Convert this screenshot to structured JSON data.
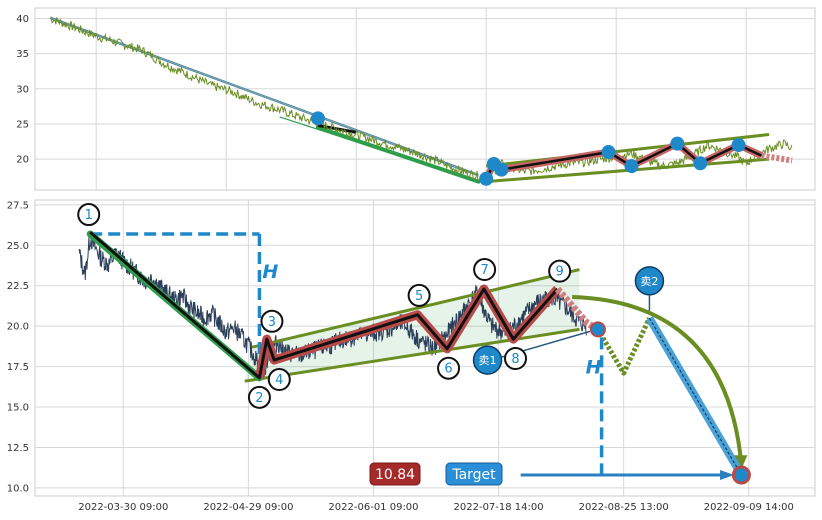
{
  "chart_data": [
    {
      "type": "line",
      "title": "",
      "ylim": [
        15.6,
        41.5
      ],
      "yticks": [
        20,
        25,
        30,
        35,
        40
      ],
      "grid": true,
      "price_anchors": [
        [
          0,
          40
        ],
        [
          3,
          38.8
        ],
        [
          6,
          37.5
        ],
        [
          9,
          36.5
        ],
        [
          12,
          35.5
        ],
        [
          15,
          33.5
        ],
        [
          18,
          32
        ],
        [
          21,
          30.5
        ],
        [
          24,
          29.5
        ],
        [
          27,
          28
        ],
        [
          30,
          27
        ],
        [
          33,
          25.8
        ],
        [
          36,
          24.8
        ],
        [
          39,
          23.8
        ],
        [
          42,
          22.8
        ],
        [
          45,
          21.8
        ],
        [
          48,
          20.8
        ],
        [
          50,
          20
        ],
        [
          52,
          19
        ],
        [
          54,
          18.2
        ],
        [
          56,
          17.6
        ],
        [
          57,
          17.2
        ],
        [
          58,
          18.4
        ],
        [
          59,
          19.3
        ],
        [
          60,
          19
        ],
        [
          62,
          18.2
        ],
        [
          64,
          18.5
        ],
        [
          66,
          19
        ],
        [
          68,
          19.4
        ],
        [
          70,
          19.6
        ],
        [
          72,
          20
        ],
        [
          74,
          20.4
        ],
        [
          76,
          20.8
        ],
        [
          78,
          19.8
        ],
        [
          80,
          19
        ],
        [
          82,
          19.4
        ],
        [
          84,
          20.5
        ],
        [
          86,
          22
        ],
        [
          88,
          21.2
        ],
        [
          90,
          20.2
        ],
        [
          91,
          19.3
        ],
        [
          92,
          20.3
        ],
        [
          94,
          21.5
        ],
        [
          96,
          22.2
        ],
        [
          97,
          21.5
        ]
      ],
      "extra_lines": [
        {
          "color": "#2e9e4d",
          "points": [
            [
              30,
              26
            ],
            [
              56,
              16.8
            ]
          ]
        },
        {
          "color": "#5a8fa0",
          "points": [
            [
              0,
              40.2
            ],
            [
              56,
              17.8
            ]
          ]
        },
        {
          "color": "#5a8fa0",
          "points": [
            [
              0,
              40.0
            ],
            [
              56,
              17.6
            ]
          ]
        }
      ],
      "green_segment": [
        [
          35,
          24.5
        ],
        [
          56,
          16.8
        ]
      ],
      "black_segment": [
        [
          35,
          24.8
        ],
        [
          40,
          23.8
        ]
      ],
      "channel_upper": [
        [
          57,
          19
        ],
        [
          94,
          23.5
        ]
      ],
      "channel_lower": [
        [
          57,
          16.8
        ],
        [
          94,
          20
        ]
      ],
      "zigzag": [
        [
          57,
          17.2
        ],
        [
          58,
          19.3
        ],
        [
          59,
          18.5
        ],
        [
          73,
          21
        ],
        [
          76,
          19
        ],
        [
          82,
          22.2
        ],
        [
          85,
          19.4
        ],
        [
          90,
          22
        ],
        [
          93,
          20.5
        ]
      ],
      "zigzag_tail": [
        [
          93,
          20.5
        ],
        [
          97,
          19.8
        ]
      ],
      "markers": [
        [
          35,
          25.8
        ],
        [
          57,
          17.2
        ],
        [
          58,
          19.3
        ],
        [
          59,
          18.5
        ],
        [
          73,
          21
        ],
        [
          76,
          19
        ],
        [
          82,
          22.2
        ],
        [
          85,
          19.4
        ],
        [
          90,
          22
        ]
      ]
    },
    {
      "type": "line",
      "title": "",
      "ylim": [
        9.5,
        27.8
      ],
      "yticks": [
        10.0,
        12.5,
        15.0,
        17.5,
        20.0,
        22.5,
        25.0,
        27.5
      ],
      "x_ticks": [
        {
          "x": 6,
          "label": "2022-03-30 09:00"
        },
        {
          "x": 23,
          "label": "2022-04-29 09:00"
        },
        {
          "x": 40,
          "label": "2022-06-01 09:00"
        },
        {
          "x": 57,
          "label": "2022-07-18 14:00"
        },
        {
          "x": 74,
          "label": "2022-08-25 13:00"
        },
        {
          "x": 91,
          "label": "2022-09-09 14:00"
        }
      ],
      "grid": true,
      "price_anchors": [
        [
          0,
          24.5
        ],
        [
          0.8,
          23.2
        ],
        [
          1.5,
          25.5
        ],
        [
          2,
          25
        ],
        [
          3,
          24.2
        ],
        [
          4,
          23.8
        ],
        [
          5,
          24.5
        ],
        [
          6,
          24
        ],
        [
          7,
          23.6
        ],
        [
          8,
          23.2
        ],
        [
          9,
          22.8
        ],
        [
          10,
          23
        ],
        [
          11,
          22.4
        ],
        [
          12,
          22
        ],
        [
          13,
          21.6
        ],
        [
          14,
          21.9
        ],
        [
          15,
          21.2
        ],
        [
          16,
          20.8
        ],
        [
          17,
          20.5
        ],
        [
          18,
          20.8
        ],
        [
          19,
          20.2
        ],
        [
          20,
          19.6
        ],
        [
          21,
          19.9
        ],
        [
          22,
          19.4
        ],
        [
          23,
          18.8
        ],
        [
          24,
          18
        ],
        [
          25,
          17
        ],
        [
          26,
          18.6
        ],
        [
          27,
          19
        ],
        [
          28,
          18.4
        ],
        [
          30,
          18.2
        ],
        [
          32,
          18.5
        ],
        [
          34,
          18.8
        ],
        [
          36,
          19.2
        ],
        [
          38,
          19.4
        ],
        [
          40,
          19.6
        ],
        [
          42,
          19.8
        ],
        [
          44,
          20.2
        ],
        [
          46,
          19.2
        ],
        [
          48,
          18.6
        ],
        [
          50,
          19.5
        ],
        [
          52,
          20.8
        ],
        [
          54,
          22
        ],
        [
          55,
          21
        ],
        [
          56,
          20
        ],
        [
          58,
          19.5
        ],
        [
          60,
          20.4
        ],
        [
          62,
          21.4
        ],
        [
          64,
          21.8
        ],
        [
          66,
          21.2
        ],
        [
          68,
          20.2
        ],
        [
          69,
          20
        ]
      ],
      "channel_upper": [
        [
          23.5,
          18.7
        ],
        [
          68,
          23.5
        ]
      ],
      "channel_lower": [
        [
          22.5,
          16.6
        ],
        [
          68,
          19.8
        ]
      ],
      "green_segment": [
        [
          1.5,
          25.7
        ],
        [
          24.5,
          16.8
        ]
      ],
      "zigzag": [
        [
          1.5,
          25.8
        ],
        [
          24.5,
          16.8
        ],
        [
          25.5,
          19.2
        ],
        [
          26.5,
          17.9
        ],
        [
          46,
          20.7
        ],
        [
          50,
          18.6
        ],
        [
          55,
          22.3
        ],
        [
          59,
          19.2
        ],
        [
          65,
          22.3
        ]
      ],
      "zigzag_tail": [
        [
          65,
          22.3
        ],
        [
          69,
          20.2
        ],
        [
          70.5,
          19.8
        ]
      ],
      "projection": [
        [
          70.5,
          19.8
        ],
        [
          74,
          17.1
        ],
        [
          77.5,
          20.5
        ]
      ],
      "sell_path": [
        [
          77.5,
          20.5
        ],
        [
          90,
          10.8
        ]
      ],
      "arc_start": [
        67,
        21.8
      ],
      "arc_ctrl": [
        88,
        21.5
      ],
      "arc_end": [
        90,
        11.4
      ],
      "target_circle": [
        90,
        10.8
      ],
      "turn_circle": [
        70.5,
        19.8
      ],
      "h_left": {
        "x": 24.5,
        "y_top": 25.7,
        "y_bottom": 16.8,
        "x_start": 1.5
      },
      "h_right": {
        "x": 71,
        "y_top": 19.8,
        "y_bottom": 10.8
      },
      "target_arrow": {
        "x_start": 60,
        "x_end": 89,
        "y": 10.8
      },
      "labels": [
        {
          "n": "1",
          "x": 1.3,
          "y": 26.9
        },
        {
          "n": "2",
          "x": 24.5,
          "y": 15.6
        },
        {
          "n": "3",
          "x": 26.2,
          "y": 20.3
        },
        {
          "n": "4",
          "x": 27.2,
          "y": 16.7
        },
        {
          "n": "5",
          "x": 46.2,
          "y": 21.9
        },
        {
          "n": "6",
          "x": 50.2,
          "y": 17.4
        },
        {
          "n": "7",
          "x": 55.1,
          "y": 23.5
        },
        {
          "n": "8",
          "x": 59.3,
          "y": 18
        },
        {
          "n": "9",
          "x": 65.3,
          "y": 23.4
        }
      ],
      "sell1": {
        "x": 55.5,
        "y": 17.9,
        "label": "卖1"
      },
      "sell2": {
        "x": 77.5,
        "y": 22.8,
        "label": "卖2"
      },
      "h_label": "H"
    }
  ],
  "badges": {
    "value": "10.84",
    "target": "Target"
  }
}
